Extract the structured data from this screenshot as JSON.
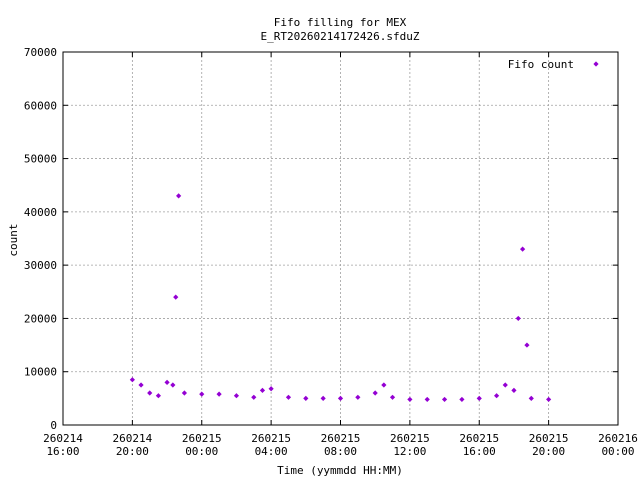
{
  "chart_data": {
    "type": "scatter",
    "title": "Fifo filling for MEX",
    "subtitle": "E_RT20260214172426.sfduZ",
    "xlabel": "Time (yymmdd HH:MM)",
    "ylabel": "count",
    "xlim": [
      "2026-02-14 16:00",
      "2026-02-16 00:00"
    ],
    "ylim": [
      0,
      70000
    ],
    "grid": true,
    "legend_position": "top-right",
    "y_ticks": [
      "0",
      "10000",
      "20000",
      "30000",
      "40000",
      "50000",
      "60000",
      "70000"
    ],
    "x_ticks": [
      {
        "date": "260214",
        "time": "16:00"
      },
      {
        "date": "260214",
        "time": "20:00"
      },
      {
        "date": "260215",
        "time": "00:00"
      },
      {
        "date": "260215",
        "time": "04:00"
      },
      {
        "date": "260215",
        "time": "08:00"
      },
      {
        "date": "260215",
        "time": "12:00"
      },
      {
        "date": "260215",
        "time": "16:00"
      },
      {
        "date": "260215",
        "time": "20:00"
      },
      {
        "date": "260216",
        "time": "00:00"
      }
    ],
    "series": [
      {
        "name": "Fifo count",
        "color": "#9400d3",
        "marker": "diamond",
        "x": [
          "2026-02-14 20:00",
          "2026-02-14 20:30",
          "2026-02-14 21:00",
          "2026-02-14 21:30",
          "2026-02-14 22:00",
          "2026-02-14 22:20",
          "2026-02-14 22:30",
          "2026-02-14 22:40",
          "2026-02-14 23:00",
          "2026-02-15 00:00",
          "2026-02-15 01:00",
          "2026-02-15 02:00",
          "2026-02-15 03:00",
          "2026-02-15 03:30",
          "2026-02-15 04:00",
          "2026-02-15 05:00",
          "2026-02-15 06:00",
          "2026-02-15 07:00",
          "2026-02-15 08:00",
          "2026-02-15 09:00",
          "2026-02-15 10:00",
          "2026-02-15 10:30",
          "2026-02-15 11:00",
          "2026-02-15 12:00",
          "2026-02-15 13:00",
          "2026-02-15 14:00",
          "2026-02-15 15:00",
          "2026-02-15 16:00",
          "2026-02-15 17:00",
          "2026-02-15 17:30",
          "2026-02-15 18:00",
          "2026-02-15 18:15",
          "2026-02-15 18:30",
          "2026-02-15 18:45",
          "2026-02-15 19:00",
          "2026-02-15 20:00"
        ],
        "y": [
          8500,
          7500,
          6000,
          5500,
          8000,
          7500,
          24000,
          43000,
          6000,
          5800,
          5800,
          5500,
          5200,
          6500,
          6800,
          5200,
          5000,
          5000,
          5000,
          5200,
          6000,
          7500,
          5200,
          4800,
          4800,
          4800,
          4800,
          5000,
          5500,
          7500,
          6500,
          20000,
          33000,
          15000,
          5000,
          4800
        ]
      }
    ]
  }
}
